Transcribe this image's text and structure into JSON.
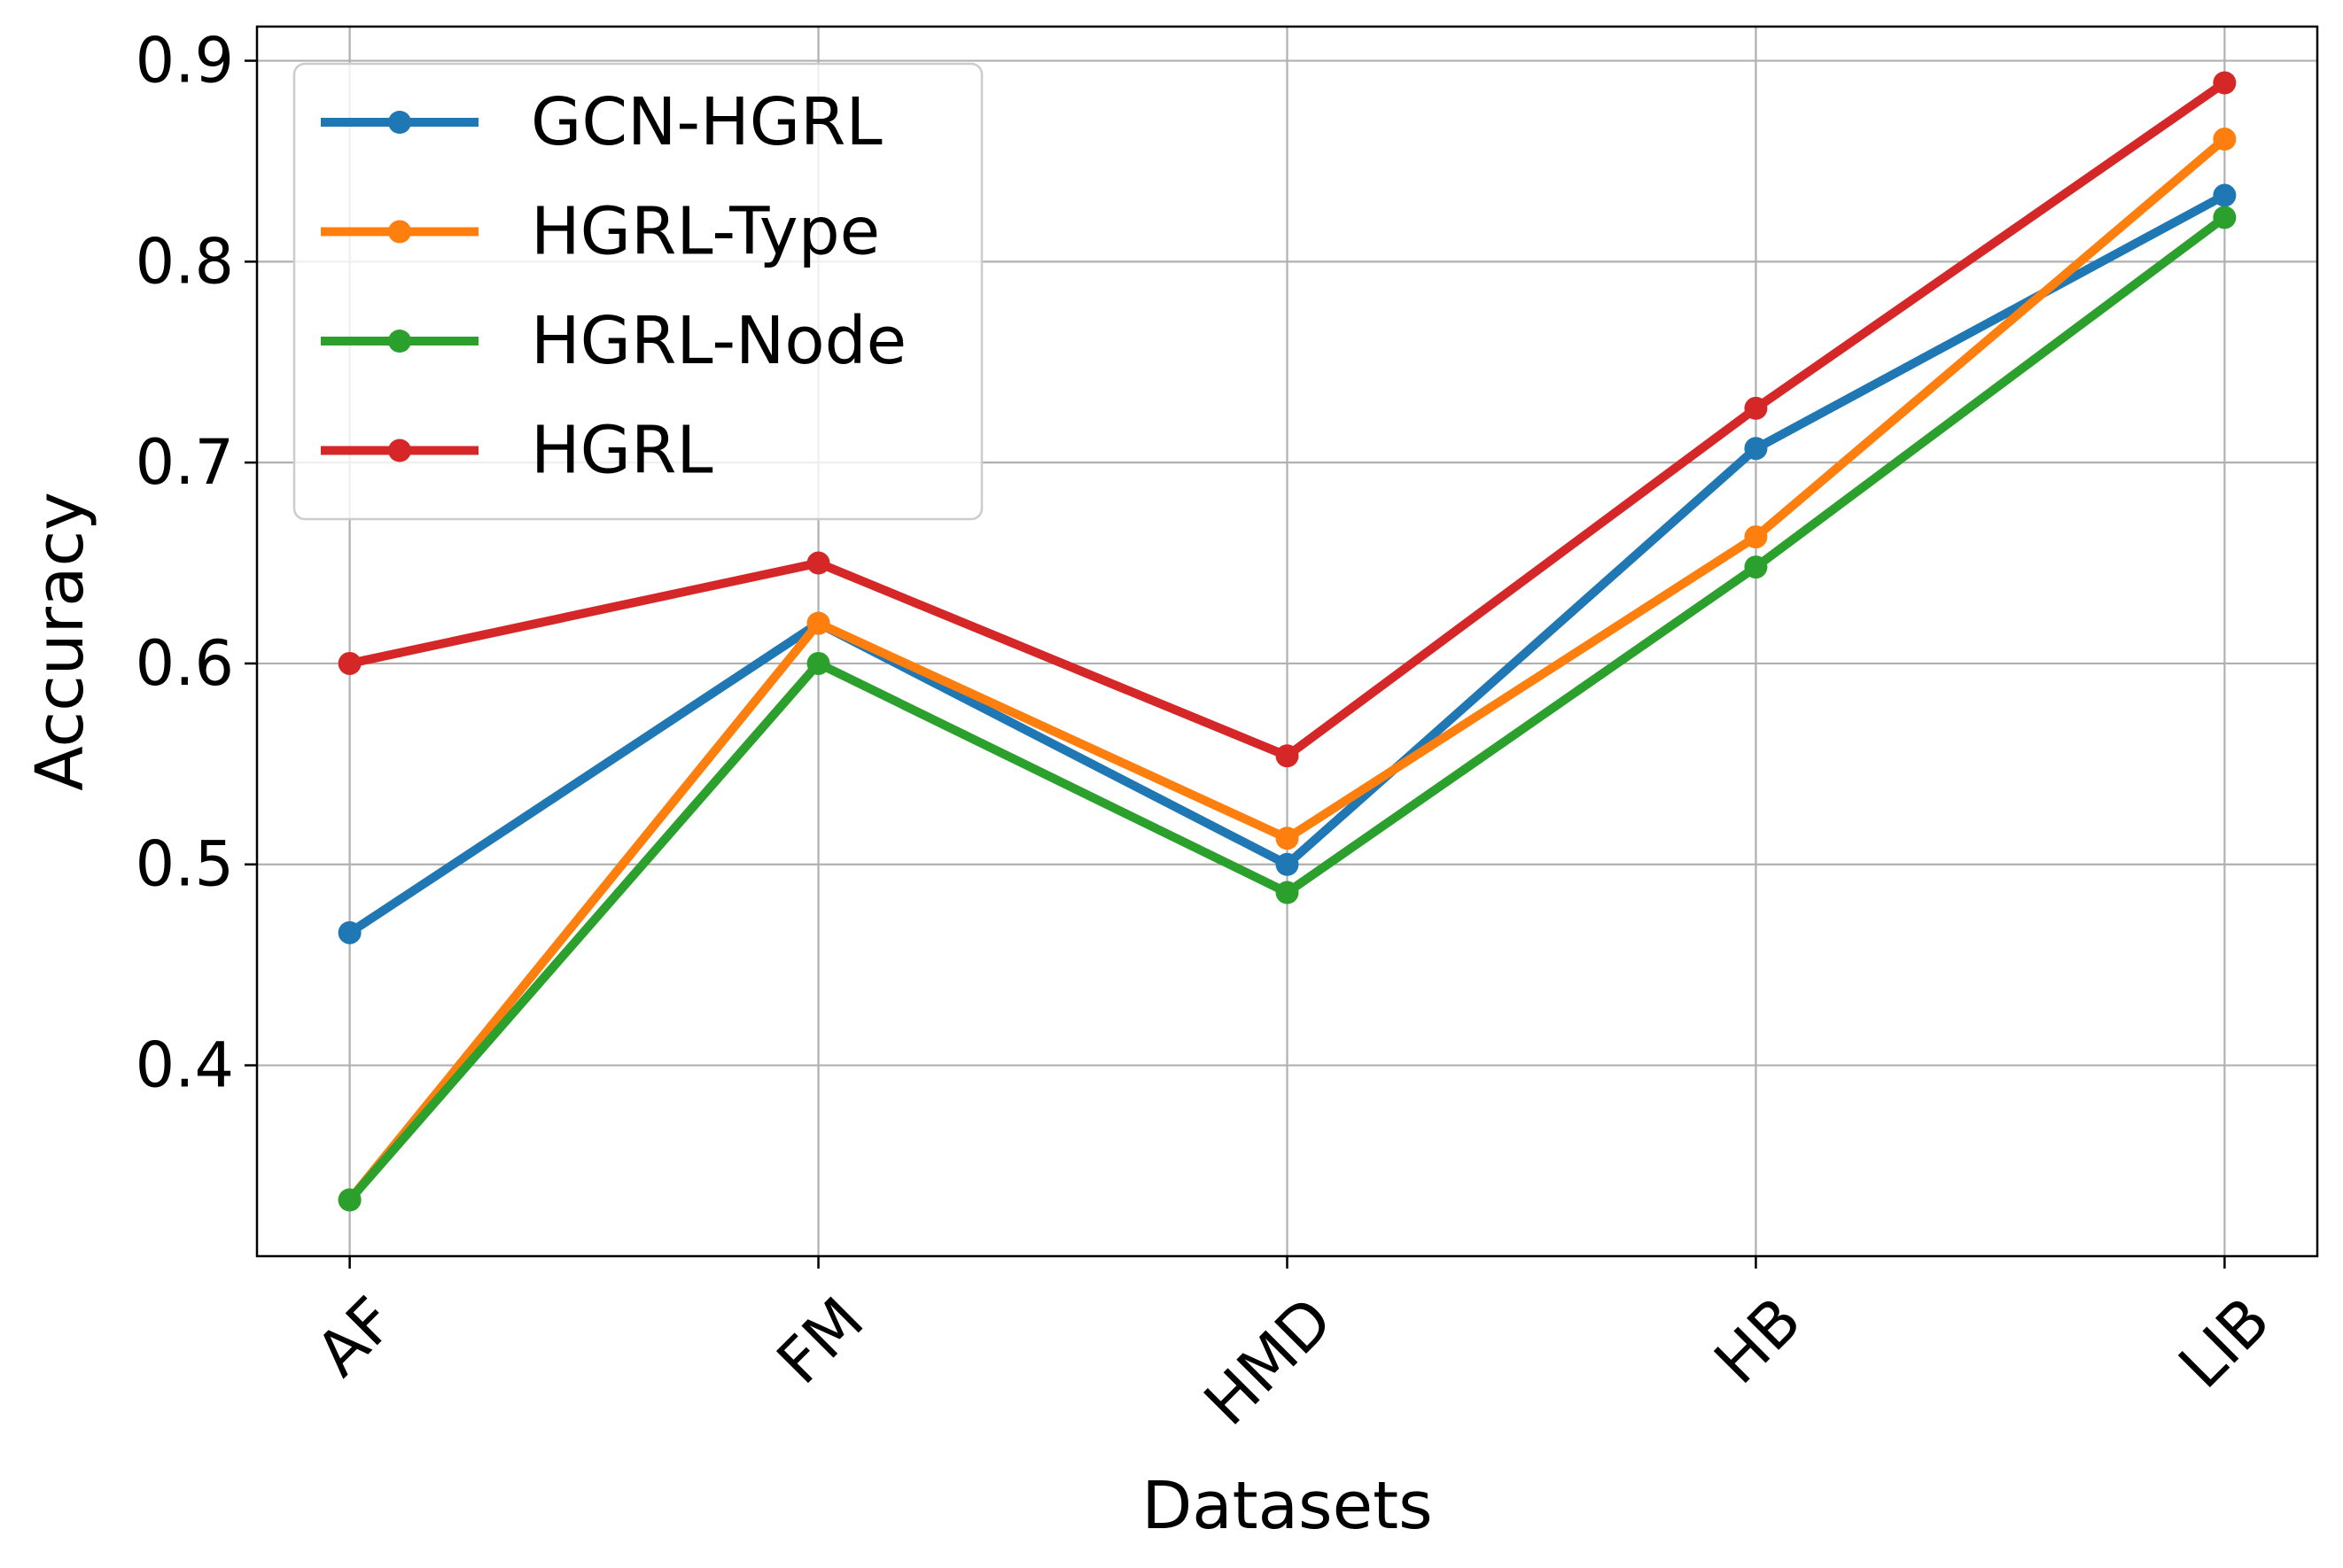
{
  "chart_data": {
    "type": "line",
    "title": "",
    "xlabel": "Datasets",
    "ylabel": "Accuracy",
    "categories": [
      "AF",
      "FM",
      "HMD",
      "HB",
      "LIB"
    ],
    "y_ticks": [
      0.4,
      0.5,
      0.6,
      0.7,
      0.8,
      0.9
    ],
    "y_tick_labels": [
      "0.4",
      "0.5",
      "0.6",
      "0.7",
      "0.8",
      "0.9"
    ],
    "ylim": [
      0.305,
      0.917
    ],
    "grid": true,
    "legend_position": "top-left",
    "x_tick_rotation": -45,
    "series": [
      {
        "name": "GCN-HGRL",
        "color": "#1f77b4",
        "values": [
          0.466,
          0.62,
          0.5,
          0.707,
          0.833
        ]
      },
      {
        "name": "HGRL-Type",
        "color": "#ff7f0e",
        "values": [
          0.333,
          0.62,
          0.513,
          0.663,
          0.861
        ]
      },
      {
        "name": "HGRL-Node",
        "color": "#2ca02c",
        "values": [
          0.333,
          0.6,
          0.486,
          0.648,
          0.822
        ]
      },
      {
        "name": "HGRL",
        "color": "#d62728",
        "values": [
          0.6,
          0.65,
          0.554,
          0.727,
          0.889
        ]
      }
    ]
  }
}
